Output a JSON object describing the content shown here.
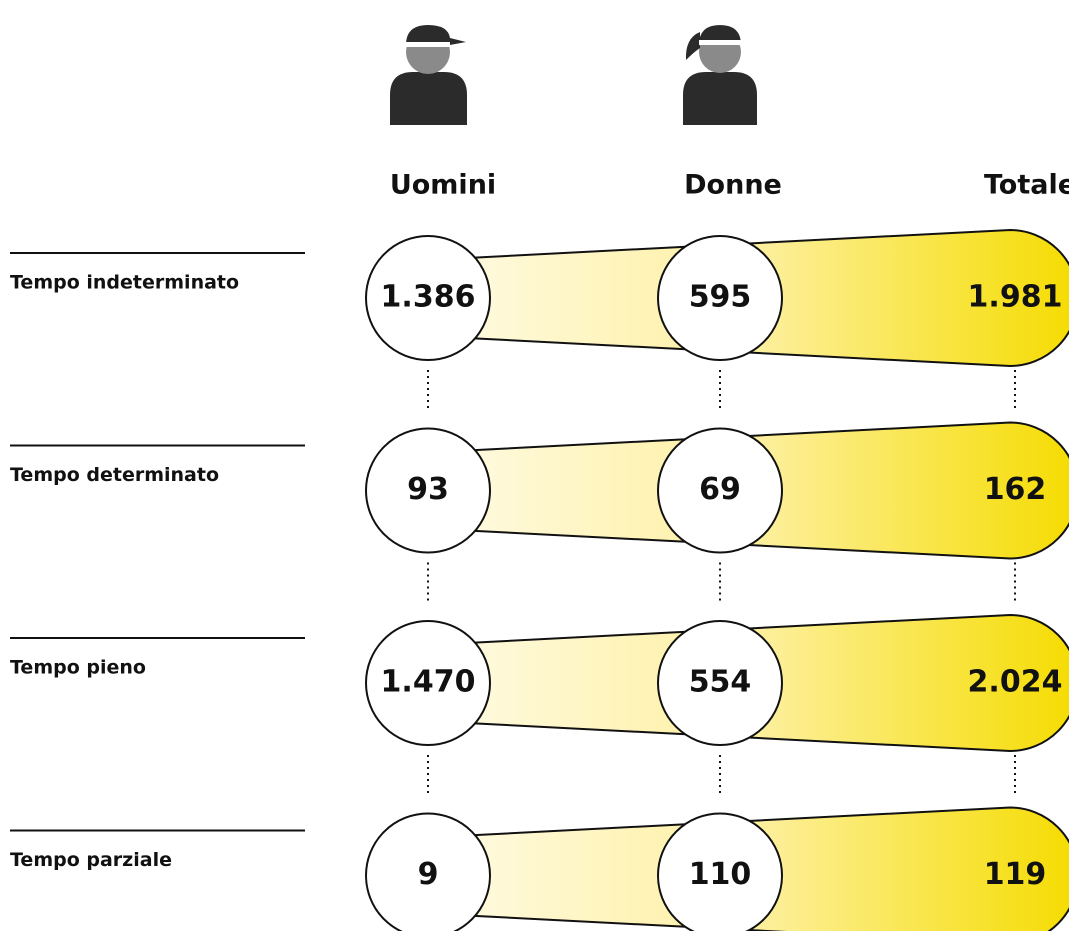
{
  "table": {
    "columns": [
      "Uomini",
      "Donne",
      "Totale"
    ],
    "rows": [
      {
        "label": "Tempo indeterminato",
        "values": [
          "1.386",
          "595",
          "1.981"
        ]
      },
      {
        "label": "Tempo determinato",
        "values": [
          "93",
          "69",
          "162"
        ]
      },
      {
        "label": "Tempo pieno",
        "values": [
          "1.470",
          "554",
          "2.024"
        ]
      },
      {
        "label": "Tempo parziale",
        "values": [
          "9",
          "110",
          "119"
        ]
      }
    ]
  }
}
